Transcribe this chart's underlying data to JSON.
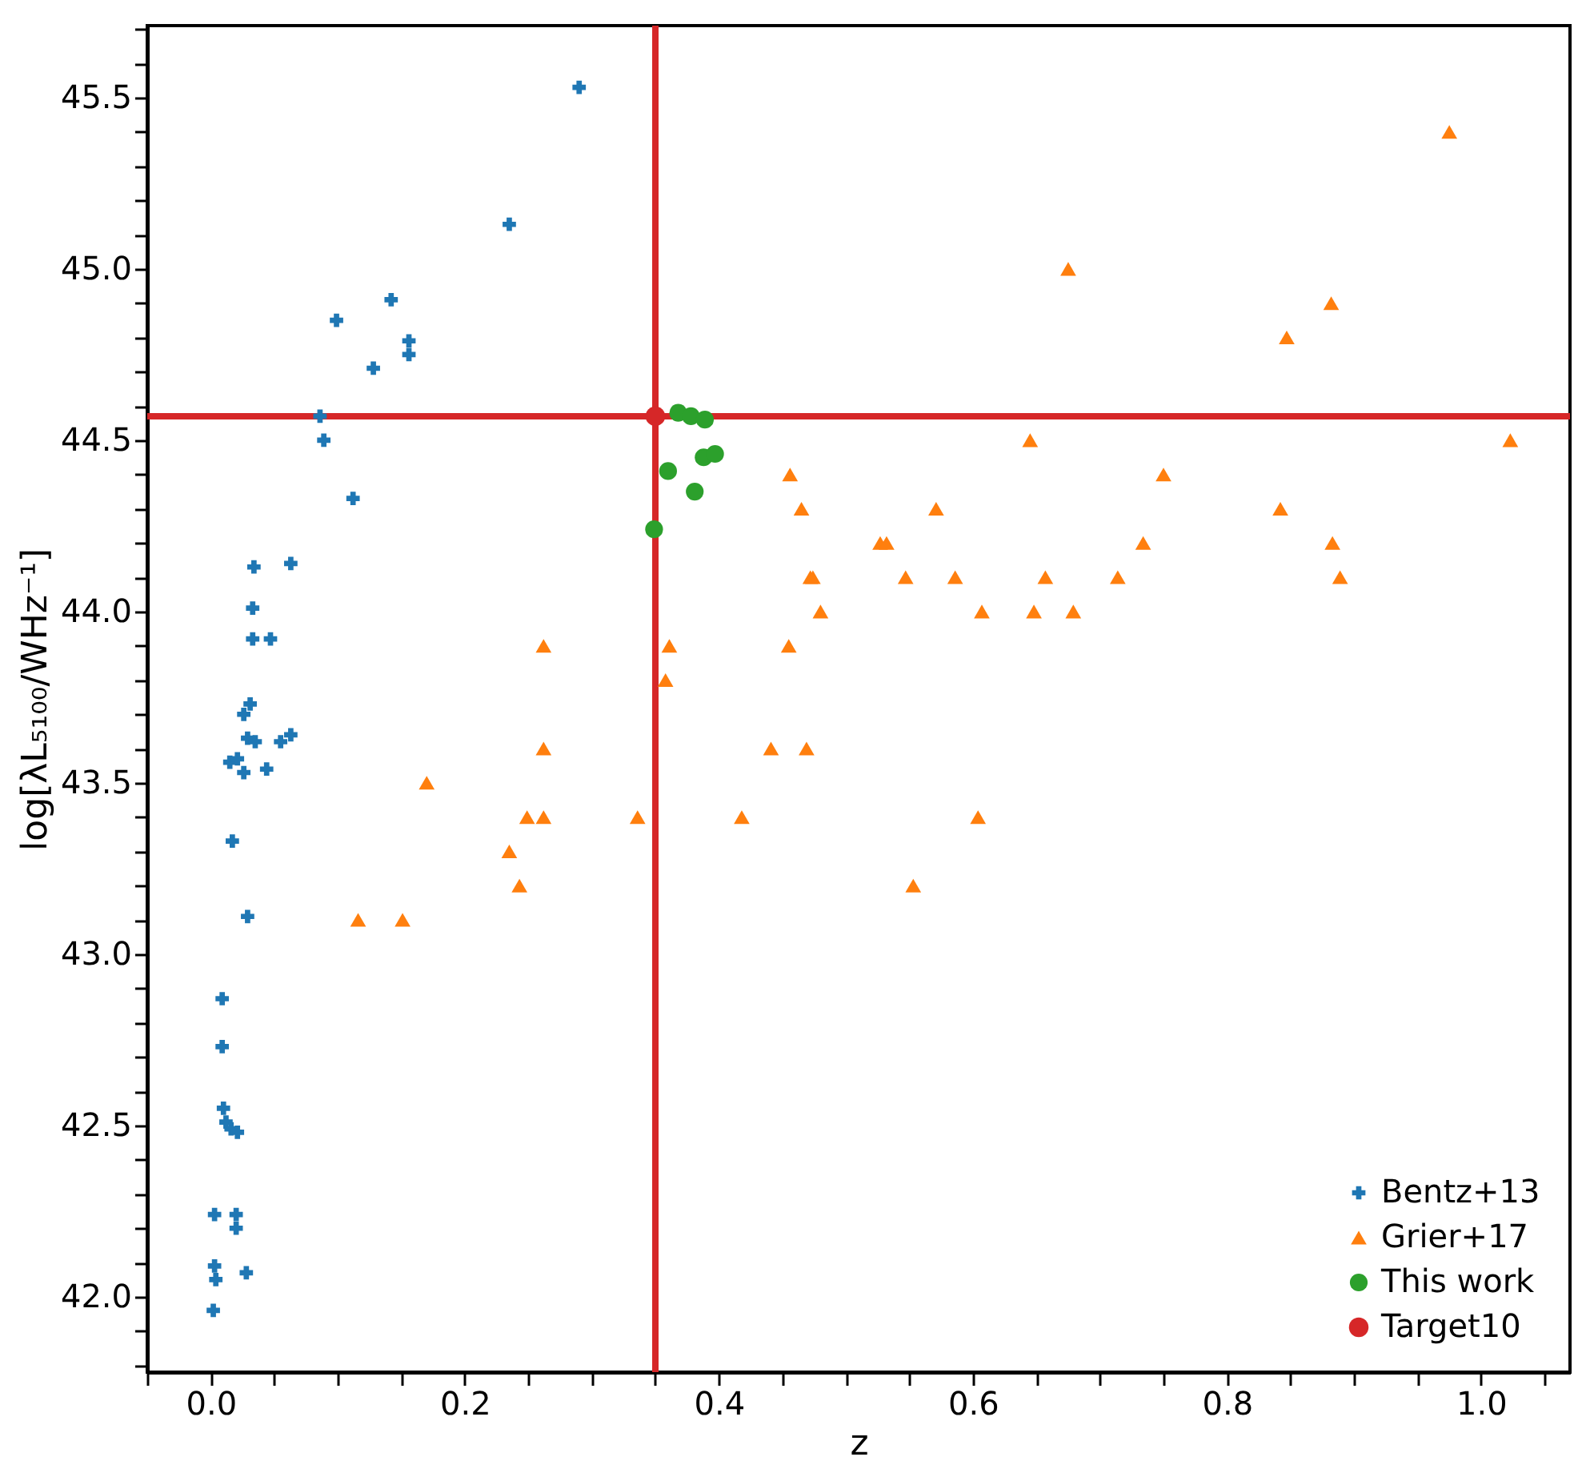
{
  "chart_data": {
    "type": "scatter",
    "xlabel": "z",
    "ylabel": "log[λL₅₁₀₀/WHz⁻¹]",
    "xlim": [
      -0.05,
      1.07
    ],
    "ylim": [
      41.78,
      45.71
    ],
    "xticks": [
      {
        "value": -0.05,
        "label": null
      },
      {
        "value": 0.0,
        "label": "0.0"
      },
      {
        "value": 0.05,
        "label": null
      },
      {
        "value": 0.1,
        "label": null
      },
      {
        "value": 0.15,
        "label": null
      },
      0.2,
      {
        "value": 0.25,
        "label": null
      },
      {
        "value": 0.3,
        "label": null
      },
      {
        "value": 0.35,
        "label": null
      },
      0.4,
      {
        "value": 0.45,
        "label": null
      },
      {
        "value": 0.5,
        "label": null
      },
      {
        "value": 0.55,
        "label": null
      },
      0.6,
      {
        "value": 0.65,
        "label": null
      },
      {
        "value": 0.7,
        "label": null
      },
      {
        "value": 0.75,
        "label": null
      },
      0.8,
      {
        "value": 0.85,
        "label": null
      },
      {
        "value": 0.9,
        "label": null
      },
      {
        "value": 0.95,
        "label": null
      },
      {
        "value": 1.0,
        "label": "1.0"
      },
      {
        "value": 1.05,
        "label": null
      }
    ],
    "yticks": [
      {
        "value": 41.8,
        "label": null
      },
      {
        "value": 41.9,
        "label": null
      },
      {
        "value": 42.0,
        "label": "42.0"
      },
      {
        "value": 42.1,
        "label": null
      },
      {
        "value": 42.2,
        "label": null
      },
      {
        "value": 42.3,
        "label": null
      },
      {
        "value": 42.4,
        "label": null
      },
      42.5,
      {
        "value": 42.6,
        "label": null
      },
      {
        "value": 42.7,
        "label": null
      },
      {
        "value": 42.8,
        "label": null
      },
      {
        "value": 42.9,
        "label": null
      },
      {
        "value": 43.0,
        "label": "43.0"
      },
      {
        "value": 43.1,
        "label": null
      },
      {
        "value": 43.2,
        "label": null
      },
      {
        "value": 43.3,
        "label": null
      },
      {
        "value": 43.4,
        "label": null
      },
      43.5,
      {
        "value": 43.6,
        "label": null
      },
      {
        "value": 43.7,
        "label": null
      },
      {
        "value": 43.8,
        "label": null
      },
      {
        "value": 43.9,
        "label": null
      },
      {
        "value": 44.0,
        "label": "44.0"
      },
      {
        "value": 44.1,
        "label": null
      },
      {
        "value": 44.2,
        "label": null
      },
      {
        "value": 44.3,
        "label": null
      },
      {
        "value": 44.4,
        "label": null
      },
      44.5,
      {
        "value": 44.6,
        "label": null
      },
      {
        "value": 44.7,
        "label": null
      },
      {
        "value": 44.8,
        "label": null
      },
      {
        "value": 44.9,
        "label": null
      },
      {
        "value": 45.0,
        "label": "45.0"
      },
      {
        "value": 45.1,
        "label": null
      },
      {
        "value": 45.2,
        "label": null
      },
      {
        "value": 45.3,
        "label": null
      },
      {
        "value": 45.4,
        "label": null
      },
      45.5,
      {
        "value": 45.6,
        "label": null
      },
      {
        "value": 45.7,
        "label": null
      }
    ],
    "grid": false,
    "legend": "bottom right",
    "ref_lines": [
      {
        "axis": "x",
        "value": 0.35,
        "color": "#d62728"
      },
      {
        "axis": "y",
        "value": 44.57,
        "color": "#d62728"
      }
    ],
    "series": [
      {
        "name": "Bentz+13",
        "color": "#1f77b4",
        "marker": "cross",
        "x": [
          0.29,
          0.235,
          0.142,
          0.099,
          0.156,
          0.156,
          0.128,
          0.086,
          0.089,
          0.112,
          0.034,
          0.063,
          0.033,
          0.033,
          0.047,
          0.031,
          0.026,
          0.029,
          0.035,
          0.055,
          0.063,
          0.015,
          0.021,
          0.026,
          0.044,
          0.017,
          0.029,
          0.009,
          0.009,
          0.01,
          0.012,
          0.016,
          0.021,
          0.003,
          0.02,
          0.02,
          0.003,
          0.004,
          0.028,
          0.002
        ],
        "values": [
          45.53,
          45.13,
          44.91,
          44.85,
          44.79,
          44.75,
          44.71,
          44.57,
          44.5,
          44.33,
          44.13,
          44.14,
          44.01,
          43.92,
          43.92,
          43.73,
          43.7,
          43.63,
          43.62,
          43.62,
          43.64,
          43.56,
          43.57,
          43.53,
          43.54,
          43.33,
          43.11,
          42.87,
          42.73,
          42.55,
          42.51,
          42.49,
          42.48,
          42.24,
          42.24,
          42.2,
          42.09,
          42.05,
          42.07,
          41.96
        ]
      },
      {
        "name": "Grier+17",
        "color": "#ff7f0e",
        "marker": "triangle",
        "x": [
          0.975,
          0.675,
          0.882,
          0.847,
          0.645,
          1.023,
          0.456,
          0.75,
          0.465,
          0.571,
          0.842,
          0.527,
          0.532,
          0.734,
          0.883,
          0.472,
          0.474,
          0.547,
          0.586,
          0.657,
          0.714,
          0.889,
          0.48,
          0.607,
          0.648,
          0.679,
          0.262,
          0.361,
          0.455,
          0.358,
          0.17,
          0.262,
          0.441,
          0.469,
          0.249,
          0.262,
          0.336,
          0.418,
          0.604,
          0.235,
          0.243,
          0.553,
          0.116,
          0.151
        ],
        "values": [
          45.4,
          45.0,
          44.9,
          44.8,
          44.5,
          44.5,
          44.4,
          44.4,
          44.3,
          44.3,
          44.3,
          44.2,
          44.2,
          44.2,
          44.2,
          44.1,
          44.1,
          44.1,
          44.1,
          44.1,
          44.1,
          44.1,
          44.0,
          44.0,
          44.0,
          44.0,
          43.9,
          43.9,
          43.9,
          43.8,
          43.5,
          43.6,
          43.6,
          43.6,
          43.4,
          43.4,
          43.4,
          43.4,
          43.4,
          43.3,
          43.2,
          43.2,
          43.1,
          43.1
        ]
      },
      {
        "name": "This work",
        "color": "#2ca02c",
        "marker": "circle",
        "x": [
          0.368,
          0.378,
          0.389,
          0.388,
          0.397,
          0.36,
          0.381,
          0.349
        ],
        "values": [
          44.58,
          44.57,
          44.56,
          44.45,
          44.46,
          44.41,
          44.35,
          44.24
        ]
      },
      {
        "name": "Target10",
        "color": "#d62728",
        "marker": "circle",
        "x": [
          0.35
        ],
        "values": [
          44.57
        ]
      }
    ]
  }
}
